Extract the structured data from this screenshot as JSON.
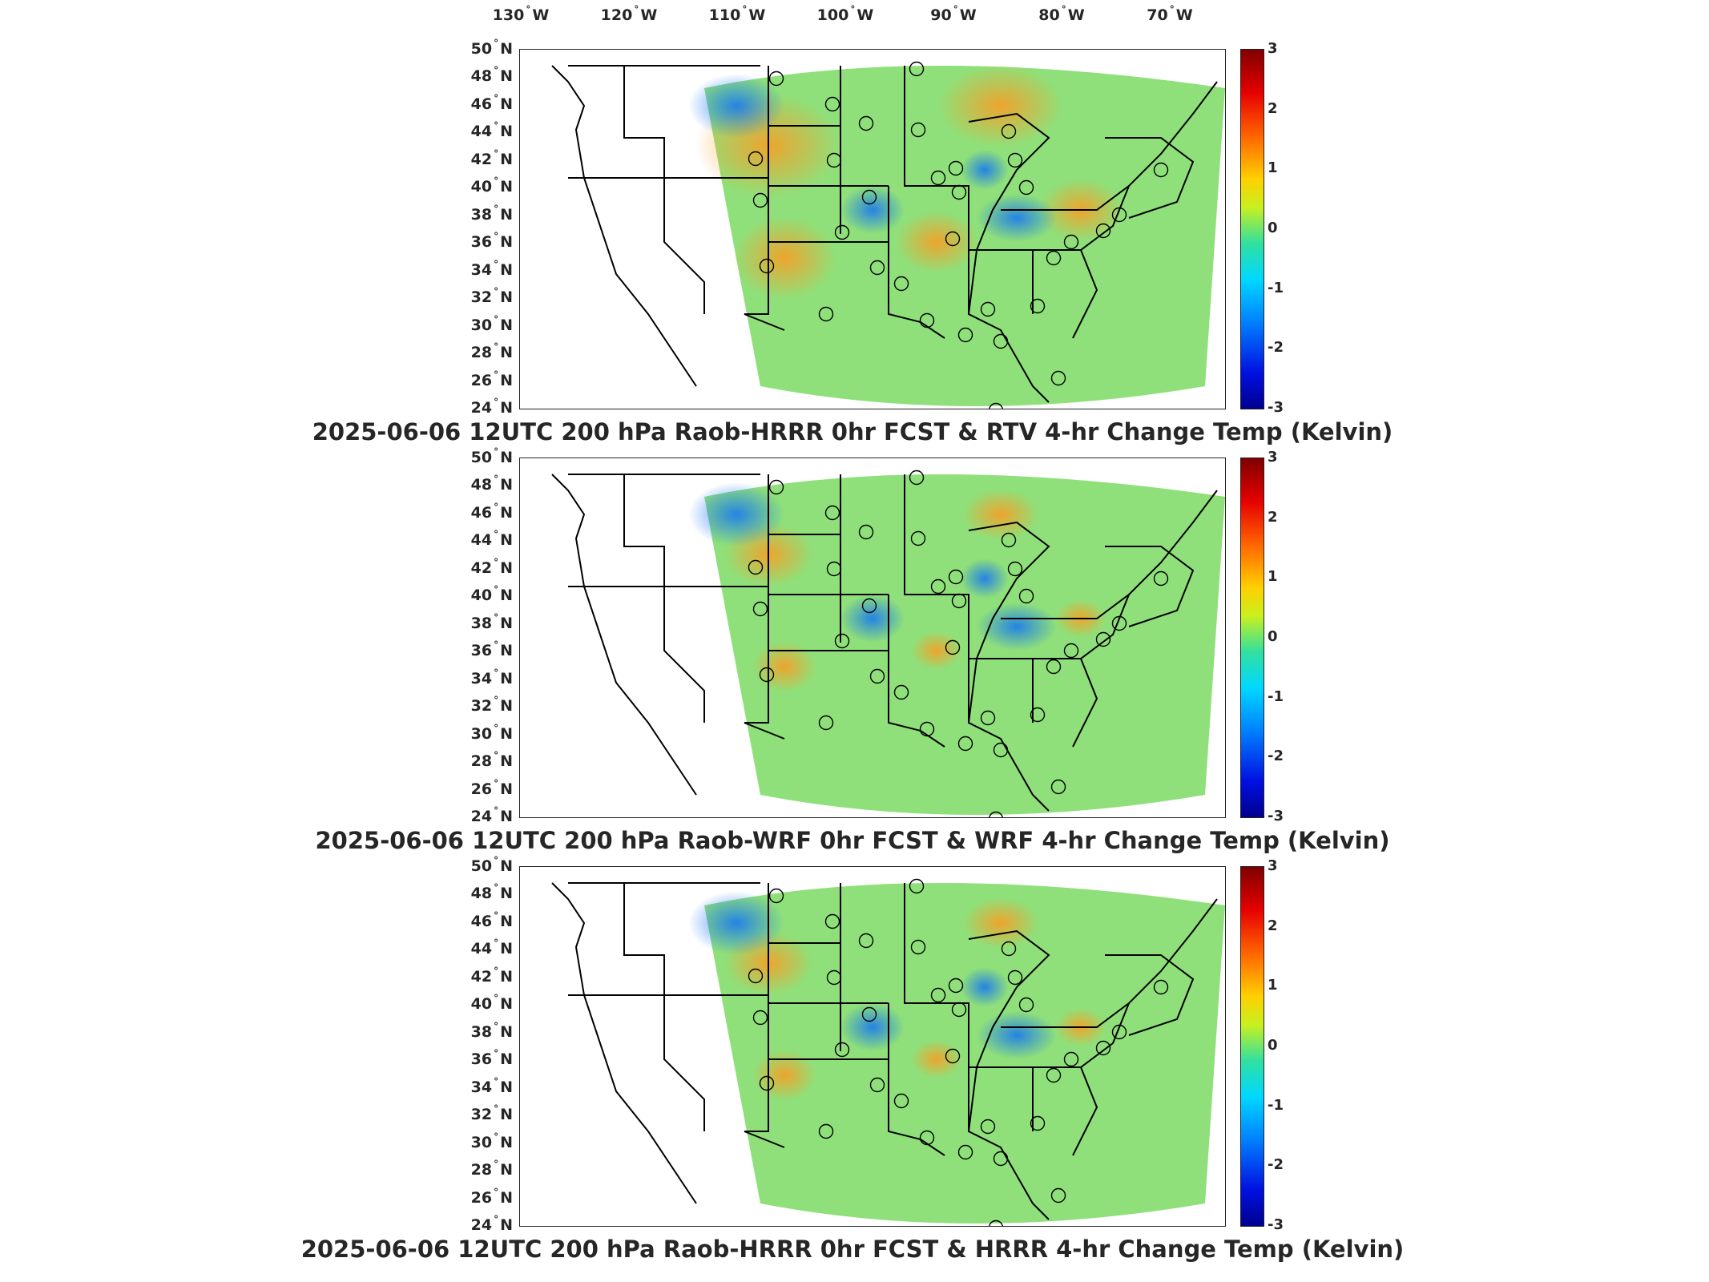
{
  "longitude_labels": [
    "130",
    "120",
    "110",
    "100",
    "90",
    "80",
    "70"
  ],
  "lon_suffix": "W",
  "latitude_labels": [
    "50",
    "48",
    "46",
    "44",
    "42",
    "40",
    "38",
    "36",
    "34",
    "32",
    "30",
    "28",
    "26",
    "24"
  ],
  "lat_suffix": "N",
  "degree_symbol": "°",
  "colorbar_ticks": [
    "3",
    "2",
    "1",
    "0",
    "-1",
    "-2",
    "-3"
  ],
  "panels": [
    {
      "title": "2025-06-06 12UTC 200 hPa Raob-HRRR 0hr FCST & RTV 4-hr Change Temp (Kelvin)"
    },
    {
      "title": "2025-06-06 12UTC 200 hPa Raob-WRF 0hr FCST & WRF 4-hr Change Temp (Kelvin)"
    },
    {
      "title": "2025-06-06 12UTC 200 hPa Raob-HRRR 0hr FCST & HRRR 4-hr Change Temp (Kelvin)"
    }
  ],
  "colors": {
    "field_base": "#8fe07a",
    "warm": "#ff9a20",
    "cool": "#0a6cff",
    "border": "#000000"
  }
}
